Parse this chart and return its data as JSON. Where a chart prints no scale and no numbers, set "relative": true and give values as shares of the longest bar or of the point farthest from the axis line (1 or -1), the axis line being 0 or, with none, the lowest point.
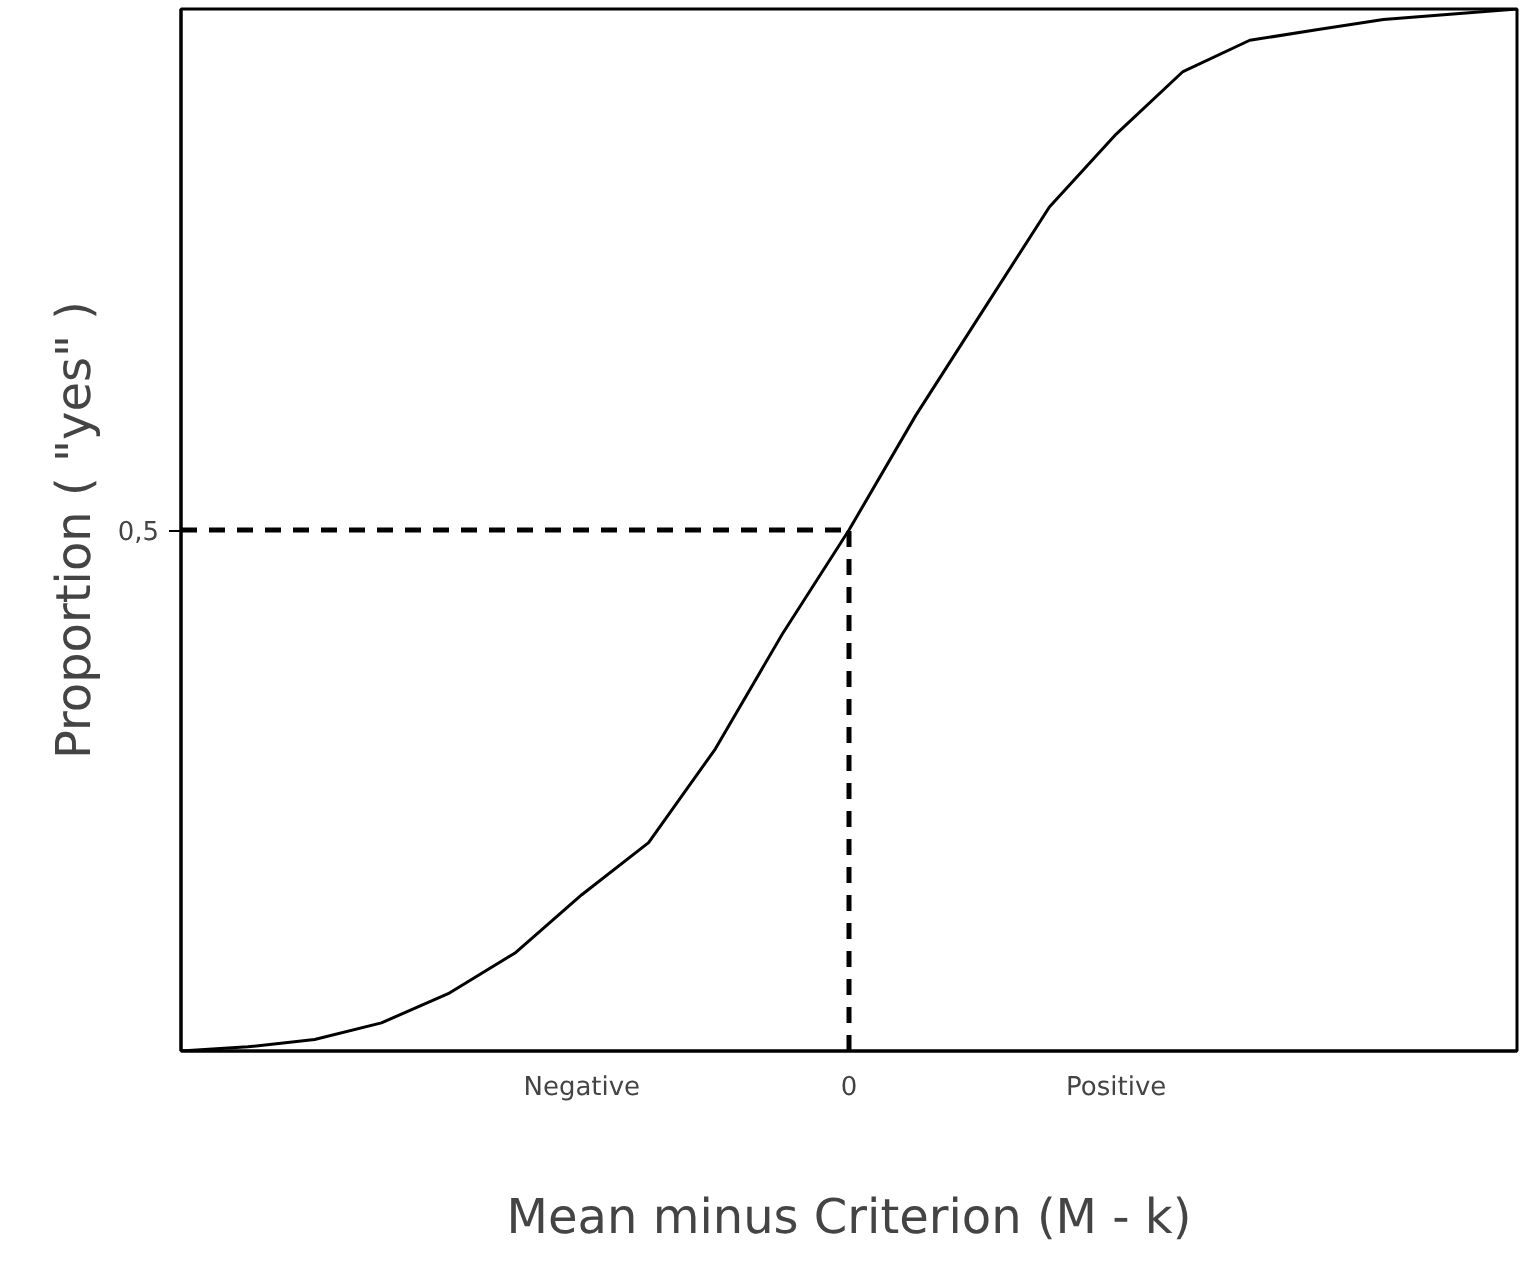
{
  "chart_data": {
    "type": "line",
    "relative": true,
    "xlabel": "Mean minus Criterion (M - k)",
    "ylabel": "Proportion ( \"yes\" )",
    "categories": [
      null,
      null,
      null,
      null,
      null,
      null,
      "Negative",
      null,
      null,
      null,
      "0",
      null,
      null,
      null,
      "Positive",
      null,
      null,
      null,
      null,
      null,
      null
    ],
    "series": [
      {
        "color": "#000000",
        "values": [
          0.0,
          0.004,
          0.011,
          0.027,
          0.055,
          0.094,
          0.15,
          0.2,
          0.29,
          0.4,
          0.5,
          0.61,
          0.71,
          0.81,
          0.88,
          0.94,
          0.97,
          0.98,
          0.99,
          0.995,
          1.0
        ]
      }
    ],
    "ref_lines": [
      {
        "axis": "y",
        "value": 0.5,
        "label": "0,5",
        "line_style": "dashed",
        "color": "#000000"
      },
      {
        "axis": "x",
        "value": "0",
        "line_style": "dashed",
        "color": "#000000"
      }
    ],
    "grid": false,
    "legend": false,
    "marker": "none",
    "line_style": "solid"
  }
}
